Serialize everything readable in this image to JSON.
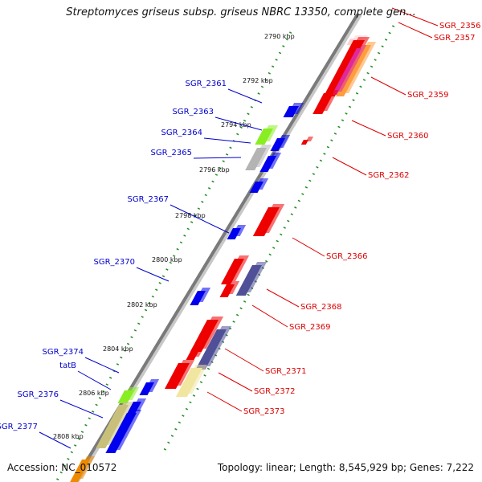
{
  "title": "Streptomyces griseus subsp. griseus NBRC 13350, complete gen...",
  "accession": "Accession: NC_010572",
  "topology": "Topology: linear; Length: 8,545,929 bp; Genes: 7,222",
  "colors": {
    "backbone": "#7a7a7a",
    "ruler": "#1e8c1e",
    "forward_label": "#0000cc",
    "reverse_label": "#dd0000",
    "gene_red": "#ee0000",
    "gene_blue": "#0000ee",
    "gene_green": "#88ee22",
    "gene_navy": "#505098",
    "gene_gray": "#b4b4b4",
    "gene_yellow": "#f0e6a0",
    "gene_olive": "#c8c07a"
  },
  "kbp_ticks": [
    "2790 kbp",
    "2792 kbp",
    "2794 kbp",
    "2796 kbp",
    "2798 kbp",
    "2800 kbp",
    "2802 kbp",
    "2804 kbp",
    "2806 kbp",
    "2808 kbp"
  ],
  "forward_labels": [
    "SGR_2361",
    "SGR_2363",
    "SGR_2364",
    "SGR_2365",
    "SGR_2367",
    "SGR_2370",
    "SGR_2374",
    "tatB",
    "SGR_2376",
    "SGR_2377"
  ],
  "reverse_labels": [
    "SGR_2356",
    "SGR_2357",
    "SGR_2359",
    "SGR_2360",
    "SGR_2362",
    "SGR_2366",
    "SGR_2368",
    "SGR_2369",
    "SGR_2371",
    "SGR_2372",
    "SGR_2373"
  ]
}
